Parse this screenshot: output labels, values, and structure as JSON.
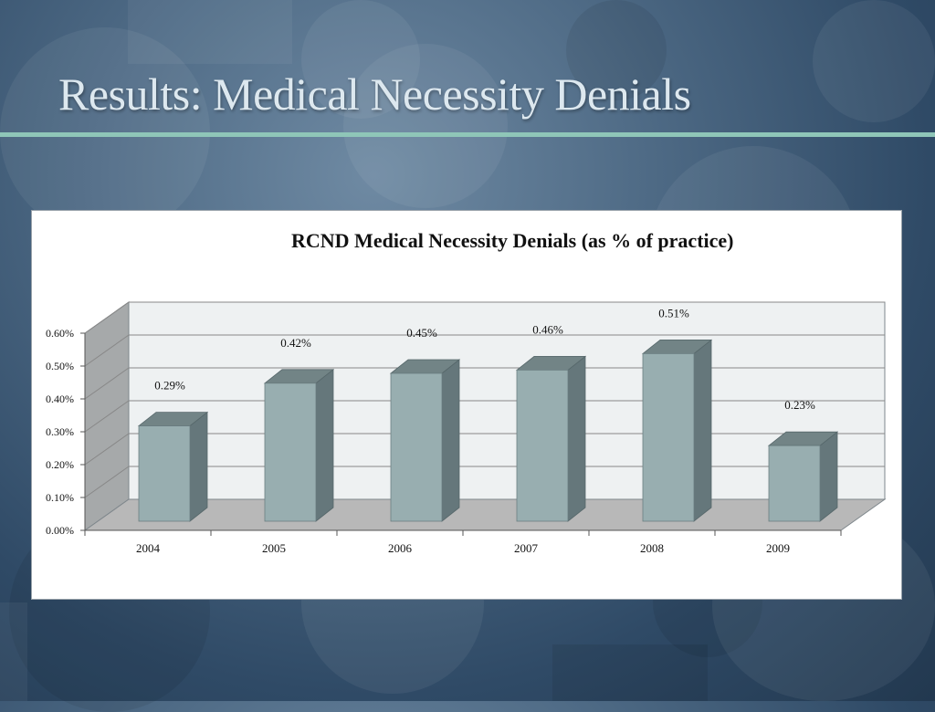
{
  "slide": {
    "title": "Results:  Medical Necessity Denials"
  },
  "colors": {
    "background": "#3b566f",
    "title_text": "#dde8ef",
    "rule": "#8fc6b8",
    "bar_front": "#98aeb0",
    "bar_side": "#65777b",
    "bar_top": "#728486",
    "wall": "#eef1f2",
    "side_wall": "#a6a9aa",
    "floor": "#b8b8b8"
  },
  "chart_data": {
    "type": "bar",
    "title": "RCND Medical Necessity Denials (as % of practice)",
    "categories": [
      "2004",
      "2005",
      "2006",
      "2007",
      "2008",
      "2009"
    ],
    "values": [
      0.29,
      0.42,
      0.45,
      0.46,
      0.51,
      0.23
    ],
    "data_labels": [
      "0.29%",
      "0.42%",
      "0.45%",
      "0.46%",
      "0.51%",
      "0.23%"
    ],
    "y_ticks": [
      "0.00%",
      "0.10%",
      "0.20%",
      "0.30%",
      "0.40%",
      "0.50%",
      "0.60%"
    ],
    "ylim": [
      0,
      0.6
    ],
    "unit": "%",
    "grid": true,
    "legend": false,
    "style": "3d-column"
  }
}
